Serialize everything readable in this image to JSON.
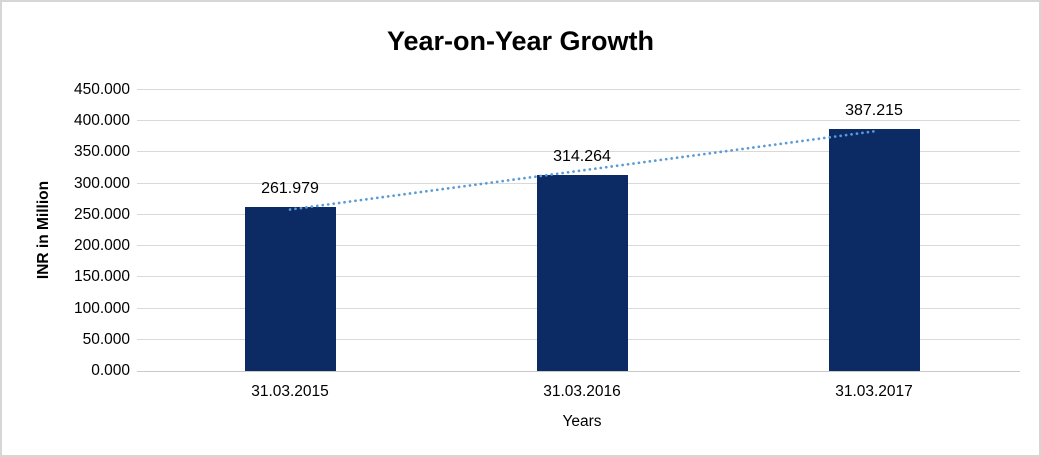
{
  "chart_data": {
    "type": "bar",
    "title": "Year-on-Year Growth",
    "xlabel": "Years",
    "ylabel": "INR in Million",
    "categories": [
      "31.03.2015",
      "31.03.2016",
      "31.03.2017"
    ],
    "values": [
      261.979,
      314.264,
      387.215
    ],
    "value_labels": [
      "261.979",
      "314.264",
      "387.215"
    ],
    "ylim": [
      0,
      450
    ],
    "y_tick_step": 50,
    "y_tick_labels": [
      "0.000",
      "50.000",
      "100.000",
      "150.000",
      "200.000",
      "250.000",
      "300.000",
      "350.000",
      "400.000",
      "450.000"
    ],
    "grid": true,
    "legend": "none",
    "trendline": {
      "type": "linear",
      "style": "dotted"
    },
    "colors": {
      "bar": "#0c2a63",
      "trendline": "#5b9bd5",
      "gridline": "#d9d9d9",
      "axis_line": "#c9c9c9",
      "text": "#000000"
    }
  }
}
